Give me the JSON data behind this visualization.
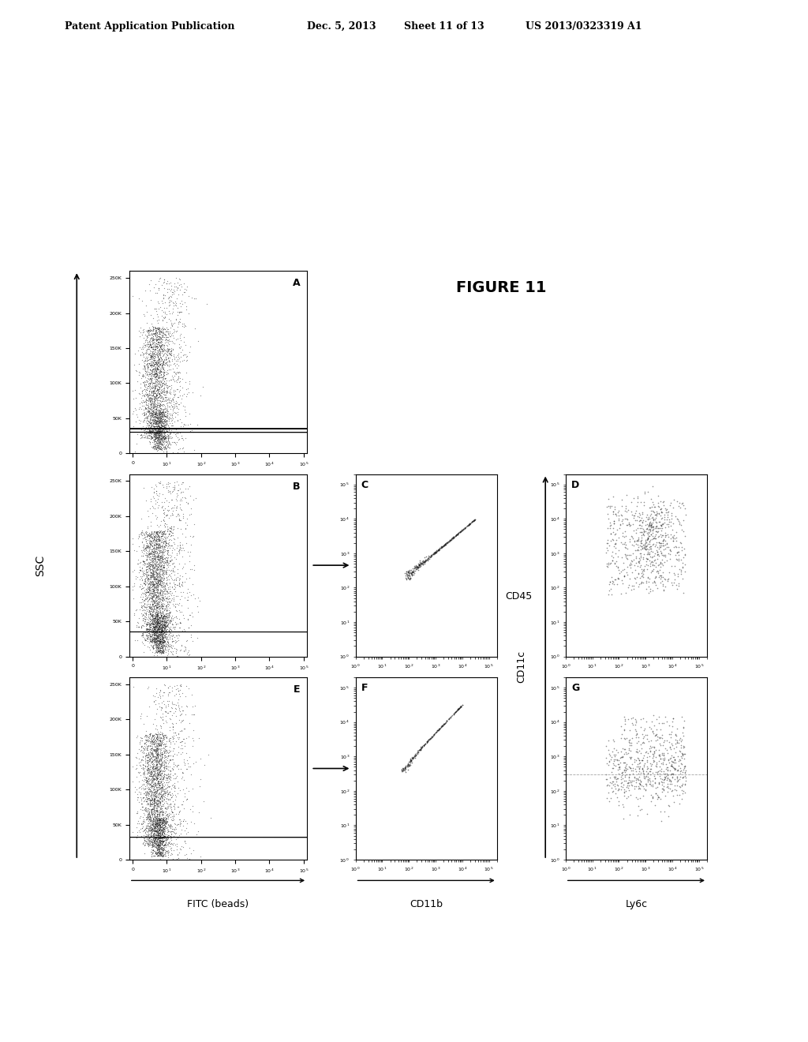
{
  "bg_color": "#ffffff",
  "header_text": "Patent Application Publication",
  "header_date": "Dec. 5, 2013",
  "header_sheet": "Sheet 11 of 13",
  "header_patent": "US 2013/0323319 A1",
  "figure_label": "FIGURE 11",
  "panel_labels": [
    "A",
    "B",
    "C",
    "D",
    "E",
    "F",
    "G"
  ],
  "ssc_label": "SSC",
  "xaxis_labels": {
    "AB": "FITC (beads)",
    "CD": "CD11c",
    "EF": "CD11b",
    "G": "Ly6c"
  },
  "yaxis_label_CD": "CD45",
  "dot_color": "#222222",
  "dot_size": 0.8,
  "scatter_alpha": 0.6
}
